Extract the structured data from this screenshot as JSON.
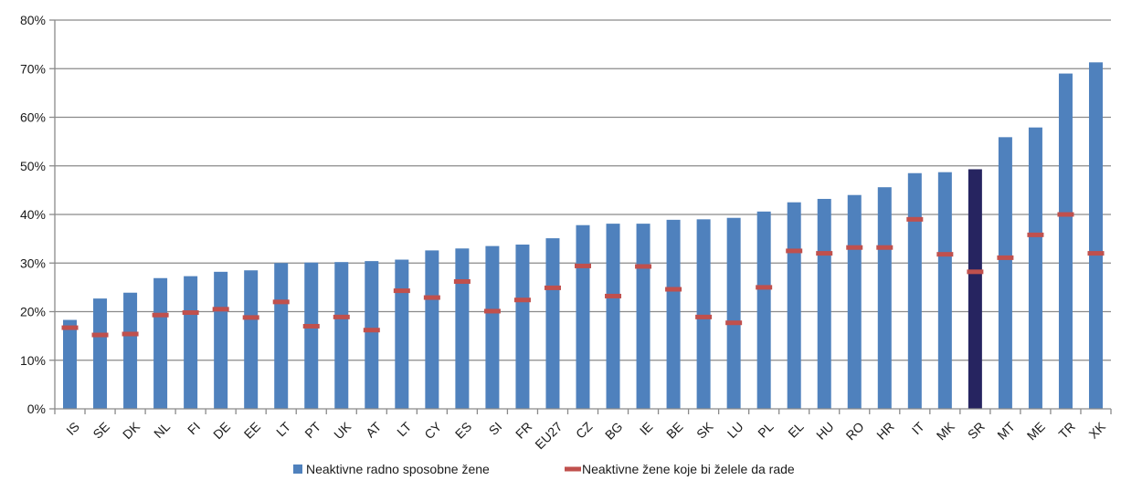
{
  "chart_data": {
    "type": "bar",
    "title": "",
    "xlabel": "",
    "ylabel": "",
    "ylim": [
      0,
      80
    ],
    "yticks": [
      "0%",
      "10%",
      "20%",
      "30%",
      "40%",
      "50%",
      "60%",
      "70%",
      "80%"
    ],
    "grid": true,
    "legend_position": "bottom",
    "categories": [
      "IS",
      "SE",
      "DK",
      "NL",
      "FI",
      "DE",
      "EE",
      "LT",
      "PT",
      "UK",
      "AT",
      "LT",
      "CY",
      "ES",
      "SI",
      "FR",
      "EU27",
      "CZ",
      "BG",
      "IE",
      "BE",
      "SK",
      "LU",
      "PL",
      "EL",
      "HU",
      "RO",
      "HR",
      "IT",
      "MK",
      "SR",
      "MT",
      "ME",
      "TR",
      "XK"
    ],
    "series": [
      {
        "name": "Neaktivne radno sposobne žene",
        "kind": "bar",
        "color": "#4f81bd",
        "highlight": {
          "category_index": 30,
          "color": "#262460"
        },
        "values": [
          18.3,
          22.7,
          23.9,
          26.9,
          27.3,
          28.2,
          28.5,
          30.0,
          30.1,
          30.2,
          30.4,
          30.7,
          32.6,
          33.0,
          33.5,
          33.8,
          35.1,
          37.8,
          38.1,
          38.1,
          38.9,
          39.0,
          39.3,
          40.6,
          42.5,
          43.2,
          44.0,
          45.6,
          48.5,
          48.7,
          49.3,
          55.9,
          57.9,
          69.0,
          71.3
        ]
      },
      {
        "name": "Neaktivne žene koje bi želele da rade",
        "kind": "dash",
        "color": "#c0504d",
        "values": [
          16.7,
          15.2,
          15.4,
          19.3,
          19.8,
          20.5,
          18.8,
          22.0,
          17.0,
          18.9,
          16.2,
          24.3,
          22.9,
          26.2,
          20.1,
          22.4,
          24.9,
          29.4,
          23.2,
          29.3,
          24.6,
          18.9,
          17.7,
          25.0,
          32.5,
          32.0,
          33.2,
          33.2,
          39.0,
          31.8,
          28.2,
          31.1,
          35.8,
          40.0,
          32.0
        ]
      }
    ]
  }
}
